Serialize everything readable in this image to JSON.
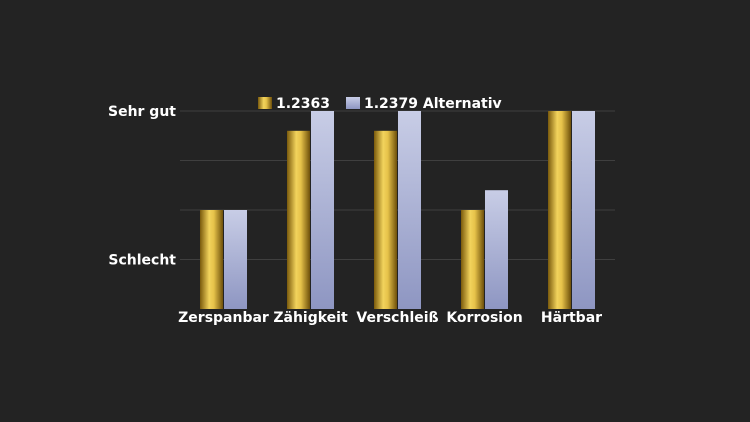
{
  "chart_data": {
    "type": "bar",
    "categories": [
      "Zerspanbar",
      "Zähigkeit",
      "Verschleiß",
      "Korrosion",
      "Härtbar"
    ],
    "series": [
      {
        "name": "1.2363",
        "values": [
          2,
          3.6,
          3.6,
          2,
          4
        ]
      },
      {
        "name": "1.2379 Alternativ",
        "values": [
          2,
          4,
          4,
          2.4,
          4
        ]
      }
    ],
    "y_tick_labels": [
      {
        "value": 1,
        "label": "Schlecht"
      },
      {
        "value": 4,
        "label": "Sehr gut"
      }
    ],
    "ylim": [
      0,
      4
    ],
    "grid": true,
    "legend_position": "top",
    "title": "",
    "xlabel": "",
    "ylabel": "",
    "colors": {
      "background": "#232323",
      "series_1": "#c9a227",
      "series_2": "#a9b3d3",
      "gridline": "#3f3f3f",
      "text": "#ffffff"
    }
  }
}
